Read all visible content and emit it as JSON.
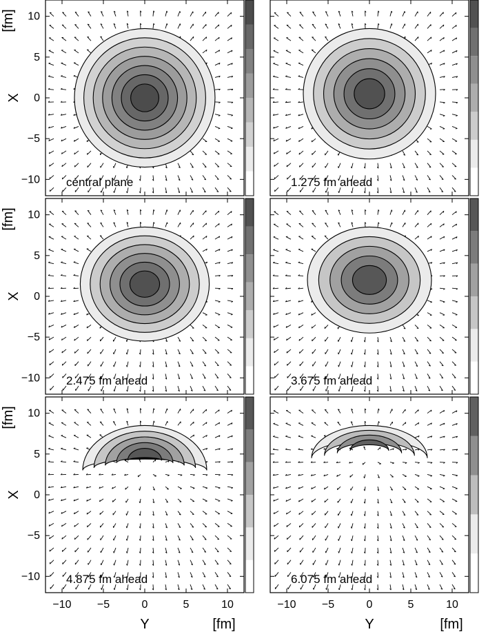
{
  "figure": {
    "xlabel": "Y",
    "xunit": "[fm]",
    "ylabel": "X",
    "yunit": "[fm]"
  },
  "chart_data": [
    {
      "type": "heatmap",
      "label": "central plane",
      "xlim": [
        -12,
        12
      ],
      "ylim": [
        -12,
        12
      ],
      "xticks": [
        -10,
        -5,
        0,
        5,
        10
      ],
      "yticks": [
        -10,
        -5,
        0,
        5,
        10
      ],
      "shape": "ellipse",
      "cx": 0,
      "cy": 0,
      "rx": 8.5,
      "ry": 8.5,
      "levels": [
        0.1,
        0.2,
        0.3,
        0.4,
        0.5,
        0.6,
        0.7
      ]
    },
    {
      "type": "heatmap",
      "label": "1.275 fm ahead",
      "xlim": [
        -12,
        12
      ],
      "ylim": [
        -12,
        12
      ],
      "xticks": [
        -10,
        -5,
        0,
        5,
        10
      ],
      "yticks": [
        -10,
        -5,
        0,
        5,
        10
      ],
      "shape": "ellipse",
      "cx": 0,
      "cy": 0.5,
      "rx": 8.0,
      "ry": 8.0,
      "levels": [
        0.1,
        0.2,
        0.3,
        0.4,
        0.5,
        0.6
      ]
    },
    {
      "type": "heatmap",
      "label": "2.475 fm ahead",
      "xlim": [
        -12,
        12
      ],
      "ylim": [
        -12,
        12
      ],
      "xticks": [
        -10,
        -5,
        0,
        5,
        10
      ],
      "yticks": [
        -10,
        -5,
        0,
        5,
        10
      ],
      "shape": "ellipse",
      "cx": 0,
      "cy": 1.5,
      "rx": 7.8,
      "ry": 7.0,
      "levels": [
        0.1,
        0.2,
        0.3,
        0.4,
        0.5,
        0.6
      ]
    },
    {
      "type": "heatmap",
      "label": "3.675 fm ahead",
      "xlim": [
        -12,
        12
      ],
      "ylim": [
        -12,
        12
      ],
      "xticks": [
        -10,
        -5,
        0,
        5,
        10
      ],
      "yticks": [
        -10,
        -5,
        0,
        5,
        10
      ],
      "shape": "ellipse",
      "cx": 0,
      "cy": 2.0,
      "rx": 7.5,
      "ry": 6.5,
      "levels": [
        0.1,
        0.2,
        0.3,
        0.4,
        0.5
      ]
    },
    {
      "type": "heatmap",
      "label": "4.875 fm ahead",
      "xlim": [
        -12,
        12
      ],
      "ylim": [
        -12,
        12
      ],
      "xticks": [
        -10,
        -5,
        0,
        5,
        10
      ],
      "yticks": [
        -10,
        -5,
        0,
        5,
        10
      ],
      "shape": "cap",
      "cx": 0,
      "cy": 3.0,
      "rx": 7.5,
      "ry": 5.5,
      "levels": [
        0.05,
        0.1,
        0.15,
        0.2,
        0.25
      ]
    },
    {
      "type": "heatmap",
      "label": "6.075 fm ahead",
      "xlim": [
        -12,
        12
      ],
      "ylim": [
        -12,
        12
      ],
      "xticks": [
        -10,
        -5,
        0,
        5,
        10
      ],
      "yticks": [
        -10,
        -5,
        0,
        5,
        10
      ],
      "shape": "crescent",
      "cx": 0,
      "cy": 4.5,
      "rx": 7.0,
      "ry": 4.0,
      "levels": [
        0.05,
        0.1,
        0.15,
        0.2
      ]
    }
  ]
}
